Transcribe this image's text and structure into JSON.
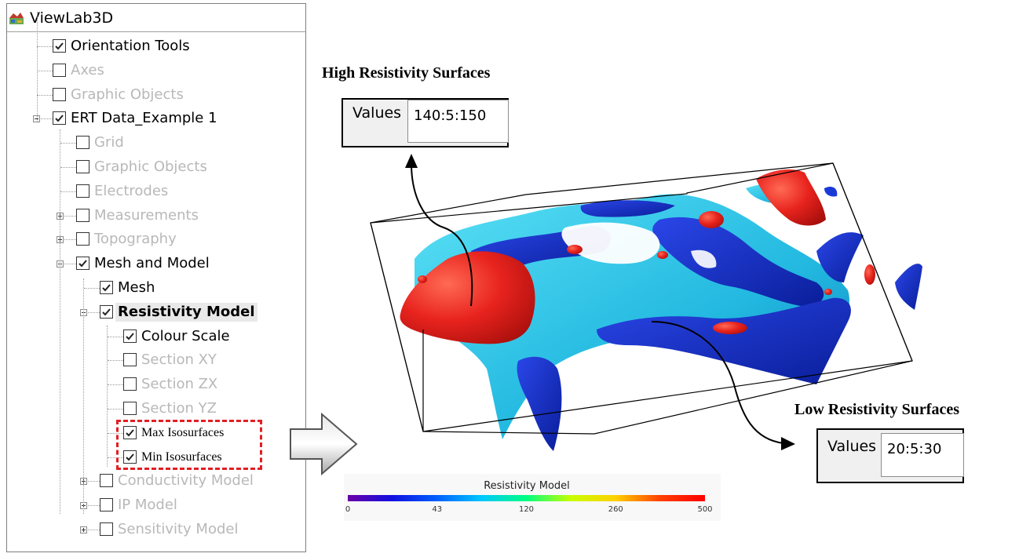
{
  "app": {
    "title": "ViewLab3D",
    "icon": "viewlab3d-app-icon"
  },
  "tree": {
    "items": [
      {
        "label": "Orientation Tools",
        "checked": true,
        "enabled": true
      },
      {
        "label": "Axes",
        "checked": false,
        "enabled": false
      },
      {
        "label": "Graphic Objects",
        "checked": false,
        "enabled": false
      },
      {
        "label": "ERT Data_Example 1",
        "checked": true,
        "enabled": true,
        "expander": "minus"
      },
      {
        "label": "Grid",
        "checked": false,
        "enabled": false
      },
      {
        "label": "Graphic Objects",
        "checked": false,
        "enabled": false
      },
      {
        "label": "Electrodes",
        "checked": false,
        "enabled": false
      },
      {
        "label": "Measurements",
        "checked": false,
        "enabled": false,
        "expander": "plus"
      },
      {
        "label": "Topography",
        "checked": false,
        "enabled": false,
        "expander": "plus"
      },
      {
        "label": "Mesh and Model",
        "checked": true,
        "enabled": true,
        "expander": "minus"
      },
      {
        "label": "Mesh",
        "checked": true,
        "enabled": true
      },
      {
        "label": "Resistivity Model",
        "checked": true,
        "enabled": true,
        "expander": "minus",
        "selected": true
      },
      {
        "label": "Colour Scale",
        "checked": true,
        "enabled": true
      },
      {
        "label": "Section XY",
        "checked": false,
        "enabled": false
      },
      {
        "label": "Section ZX",
        "checked": false,
        "enabled": false
      },
      {
        "label": "Section YZ",
        "checked": false,
        "enabled": false
      },
      {
        "label": "Max Isosurfaces",
        "checked": true,
        "enabled": true
      },
      {
        "label": "Min Isosurfaces",
        "checked": true,
        "enabled": true
      },
      {
        "label": "Conductivity Model",
        "checked": false,
        "enabled": false,
        "expander": "plus"
      },
      {
        "label": "IP Model",
        "checked": false,
        "enabled": false,
        "expander": "plus"
      },
      {
        "label": "Sensitivity Model",
        "checked": false,
        "enabled": false,
        "expander": "plus"
      }
    ]
  },
  "high": {
    "caption": "High Resistivity Surfaces",
    "label": "Values",
    "value": "140:5:150"
  },
  "low": {
    "caption": "Low Resistivity Surfaces",
    "label": "Values",
    "value": "20:5:30"
  },
  "colour_scale": {
    "title": "Resistivity Model",
    "ticks": [
      "0",
      "43",
      "120",
      "260",
      "500"
    ],
    "colors": [
      "#6a00a8",
      "#1010e0",
      "#0060ff",
      "#00c8ff",
      "#00ff80",
      "#c8ff00",
      "#ffd000",
      "#ff4000",
      "#ff0000"
    ]
  },
  "colors": {
    "high_surface": "#e8231e",
    "low_surface_dark": "#1030d0",
    "low_surface_light": "#33c8e8",
    "highlight_border": "#e31e24"
  }
}
